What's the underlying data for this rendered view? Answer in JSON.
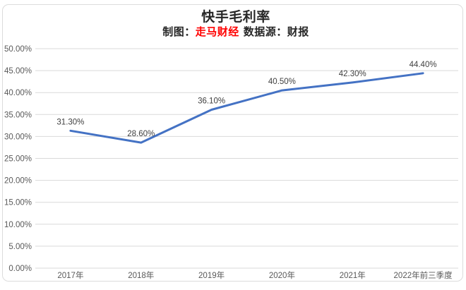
{
  "card": {
    "title": "快手毛利率",
    "subtitle": {
      "prefix": "制图：",
      "credit": "走马财经",
      "suffix": "数据源：财报"
    },
    "credit_color": "#ff0000"
  },
  "chart_data": {
    "type": "line",
    "title": "快手毛利率",
    "categories": [
      "2017年",
      "2018年",
      "2019年",
      "2020年",
      "2021年",
      "2022年前三季度"
    ],
    "series": [
      {
        "name": "毛利率",
        "values": [
          31.3,
          28.6,
          36.1,
          40.5,
          42.3,
          44.4
        ],
        "point_labels": [
          "31.30%",
          "28.60%",
          "36.10%",
          "40.50%",
          "42.30%",
          "44.40%"
        ],
        "color": "#4472C4"
      }
    ],
    "xlabel": "",
    "ylabel": "",
    "ylim": [
      0,
      50
    ],
    "ytick_step": 5,
    "ytick_labels": [
      "0.00%",
      "5.00%",
      "10.00%",
      "15.00%",
      "20.00%",
      "25.00%",
      "30.00%",
      "35.00%",
      "40.00%",
      "45.00%",
      "50.00%"
    ],
    "grid": true,
    "legend_position": "none",
    "gridline_color": "#d9d9d9",
    "axis_label_color": "#595959",
    "point_label_color": "#404040"
  }
}
